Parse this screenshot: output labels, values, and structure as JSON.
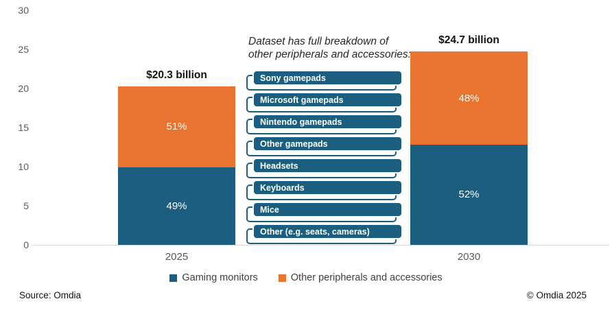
{
  "chart_data": {
    "type": "bar",
    "stacked": true,
    "categories": [
      "2025",
      "2030"
    ],
    "series": [
      {
        "name": "Gaming monitors",
        "color": "#1B5E7F",
        "values": [
          9.95,
          12.84
        ],
        "segment_labels": [
          "49%",
          "52%"
        ]
      },
      {
        "name": "Other peripherals and accessories",
        "color": "#E9742F",
        "values": [
          10.35,
          11.86
        ],
        "segment_labels": [
          "51%",
          "48%"
        ]
      }
    ],
    "totals": [
      20.3,
      24.7
    ],
    "total_labels": [
      "$20.3 billion",
      "$24.7 billion"
    ],
    "xlabel": "",
    "ylabel": "",
    "ylim": [
      0,
      30
    ],
    "yticks": [
      0,
      5,
      10,
      15,
      20,
      25,
      30
    ],
    "grid": false,
    "legend_position": "bottom-center"
  },
  "annotation": {
    "lines": [
      "Dataset has full breakdown of",
      "other peripherals and accessories:"
    ],
    "items": [
      "Sony gamepads",
      "Microsoft gamepads",
      "Nintendo gamepads",
      "Other gamepads",
      "Headsets",
      "Keyboards",
      "Mice",
      "Other (e.g. seats, cameras)"
    ]
  },
  "legend": {
    "items": [
      {
        "label": "Gaming monitors",
        "color": "#1B5E7F"
      },
      {
        "label": "Other peripherals and accessories",
        "color": "#E9742F"
      }
    ]
  },
  "footer": {
    "source": "Source: Omdia",
    "copyright": "© Omdia 2025"
  },
  "colors": {
    "teal": "#1B5E7F",
    "orange": "#E9742F",
    "axis_text": "#595959",
    "axis_line": "#d9d9d9",
    "annotation_text": "#262626",
    "total_label_text": "#111111"
  }
}
